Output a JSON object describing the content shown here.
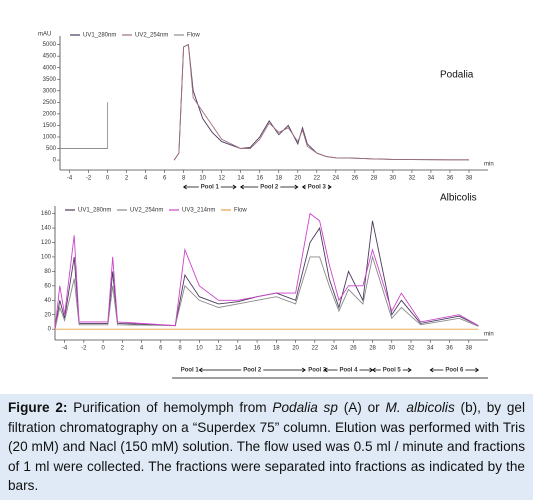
{
  "chart_data": [
    {
      "type": "line",
      "title": "Podalia",
      "y_label": "mAU",
      "x_label": "min",
      "x": [
        -5,
        -2,
        0,
        0,
        4,
        7,
        7.5,
        8,
        8.5,
        9,
        10,
        11,
        12,
        14,
        15,
        16,
        17,
        18,
        19,
        20,
        20.5,
        21,
        22,
        23,
        24,
        26,
        28,
        30,
        32,
        36,
        38
      ],
      "series": [
        {
          "name": "UV1_280nm",
          "color": "#4b3a5e",
          "values": [
            null,
            null,
            null,
            null,
            null,
            0,
            300,
            4900,
            5000,
            3000,
            1800,
            1200,
            800,
            500,
            550,
            1000,
            1700,
            1100,
            1500,
            700,
            1400,
            700,
            300,
            150,
            100,
            80,
            50,
            30,
            20,
            10,
            10
          ]
        },
        {
          "name": "UV2_254nm",
          "color": "#a07080",
          "values": [
            null,
            null,
            null,
            null,
            null,
            0,
            300,
            4900,
            5000,
            2700,
            2100,
            1500,
            900,
            500,
            500,
            900,
            1600,
            1200,
            1400,
            800,
            1300,
            600,
            300,
            150,
            100,
            80,
            50,
            30,
            20,
            10,
            10
          ]
        },
        {
          "name": "Flow",
          "color": "#909090",
          "values": [
            500,
            500,
            500,
            2500,
            null,
            null,
            null,
            null,
            null,
            null,
            null,
            null,
            null,
            null,
            null,
            null,
            null,
            null,
            null,
            null,
            null,
            null,
            null,
            null,
            null,
            null,
            null,
            null,
            null,
            null,
            null
          ]
        }
      ],
      "xlim": [
        -5,
        40
      ],
      "xticks": [
        -4,
        -2,
        0,
        2,
        4,
        6,
        8,
        10,
        12,
        14,
        16,
        18,
        20,
        22,
        24,
        26,
        28,
        30,
        32,
        34,
        36,
        38
      ],
      "ylim": [
        -300,
        5200
      ],
      "yticks": [
        0,
        500,
        1000,
        1500,
        2000,
        2500,
        3000,
        3500,
        4000,
        4500,
        5000
      ],
      "pools": [
        {
          "label": "Pool 1",
          "start": 8,
          "end": 13.5
        },
        {
          "label": "Pool 2",
          "start": 14,
          "end": 20
        },
        {
          "label": "Pool 3",
          "start": 20.5,
          "end": 23.5
        }
      ]
    },
    {
      "type": "line",
      "title": "Albicolis",
      "x_label": "min",
      "x": [
        -5,
        -4.5,
        -4,
        -3,
        -2.5,
        0.5,
        1,
        1.5,
        7.5,
        8.5,
        10,
        12,
        14,
        16,
        18,
        20,
        21.5,
        22.5,
        23.5,
        24.5,
        25.5,
        27,
        28,
        30,
        31,
        33,
        37,
        39
      ],
      "series": [
        {
          "name": "UV1_280nm",
          "color": "#4b3a5e",
          "values": [
            0,
            40,
            15,
            100,
            8,
            8,
            80,
            8,
            5,
            75,
            45,
            35,
            38,
            45,
            50,
            40,
            120,
            140,
            70,
            30,
            80,
            40,
            150,
            20,
            40,
            8,
            18,
            5
          ]
        },
        {
          "name": "UV2_254nm",
          "color": "#8a8a8a",
          "values": [
            0,
            30,
            12,
            70,
            6,
            6,
            60,
            6,
            5,
            60,
            40,
            30,
            35,
            40,
            45,
            35,
            100,
            100,
            60,
            25,
            55,
            35,
            100,
            15,
            30,
            6,
            15,
            4
          ]
        },
        {
          "name": "UV3_214nm",
          "color": "#cc44cc",
          "values": [
            0,
            60,
            20,
            130,
            10,
            10,
            100,
            10,
            5,
            110,
            60,
            40,
            40,
            45,
            50,
            50,
            160,
            150,
            90,
            40,
            60,
            60,
            110,
            25,
            50,
            10,
            20,
            5
          ]
        },
        {
          "name": "Flow",
          "color": "#e8a040",
          "values": [
            0,
            0,
            0,
            0,
            0,
            0,
            0,
            0,
            0,
            0,
            0,
            0,
            0,
            0,
            0,
            0,
            0,
            0,
            0,
            0,
            0,
            0,
            0,
            0,
            0,
            0,
            0,
            0
          ]
        }
      ],
      "xlim": [
        -5,
        40
      ],
      "xticks": [
        -4,
        -2,
        0,
        2,
        4,
        6,
        8,
        10,
        12,
        14,
        16,
        18,
        20,
        22,
        24,
        26,
        28,
        30,
        32,
        34,
        36,
        38
      ],
      "ylim": [
        -15,
        165
      ],
      "yticks": [
        0,
        20,
        40,
        60,
        80,
        100,
        120,
        140,
        160
      ],
      "pools": [
        {
          "label": "Pool 1",
          "start": 8,
          "end": 10
        },
        {
          "label": "Pool 2",
          "start": 10,
          "end": 21
        },
        {
          "label": "Pool 3",
          "start": 21.5,
          "end": 23
        },
        {
          "label": "Pool 4",
          "start": 23,
          "end": 28
        },
        {
          "label": "Pool 5",
          "start": 28,
          "end": 32
        },
        {
          "label": "Pool 6",
          "start": 34,
          "end": 39
        }
      ]
    }
  ],
  "caption": {
    "parts": [
      "Figure 2:",
      " Purification of hemolymph from ",
      "Podalia sp",
      " (A) or ",
      "M. albicolis",
      " (b), by gel filtration chromatography on a “Superdex 75” column. Elution was performed with Tris (20 mM) and Nacl (150 mM) solution. The flow used was 0.5 ml / minute and fractions of 1 ml were collected. The fractions were separated into fractions as indicated by the bars."
    ]
  }
}
